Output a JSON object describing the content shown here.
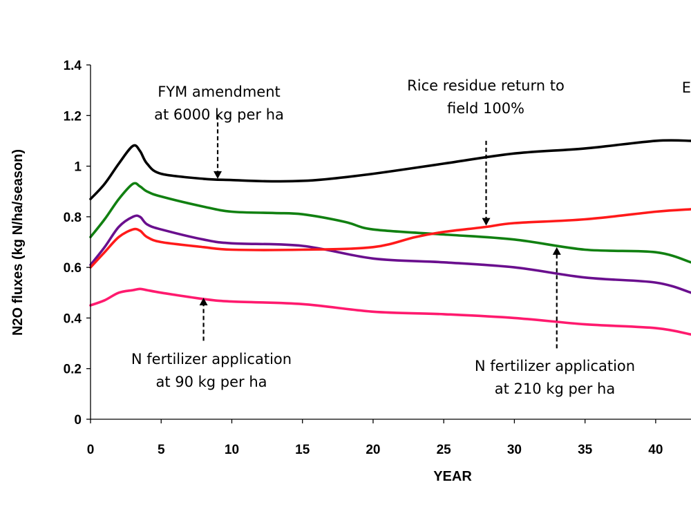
{
  "chart_data": {
    "type": "line",
    "title": "",
    "xlabel": "YEAR",
    "ylabel": "N2O fluxes (kg N/ha/season)",
    "xlim": [
      0,
      42.5
    ],
    "ylim": [
      0,
      1.4
    ],
    "xticks": [
      "0",
      "5",
      "10",
      "15",
      "20",
      "25",
      "30",
      "35",
      "40"
    ],
    "yticks": [
      "0",
      "0.2",
      "0.4",
      "0.6",
      "0.8",
      "1",
      "1.2",
      "1.4"
    ],
    "grid": false,
    "legend": "none",
    "series": [
      {
        "color": "#000000",
        "points": [
          [
            0,
            0.87
          ],
          [
            1,
            0.93
          ],
          [
            2,
            1.01
          ],
          [
            3,
            1.08
          ],
          [
            3.5,
            1.06
          ],
          [
            4,
            1.01
          ],
          [
            5,
            0.97
          ],
          [
            8,
            0.95
          ],
          [
            10,
            0.945
          ],
          [
            13,
            0.94
          ],
          [
            16,
            0.945
          ],
          [
            20,
            0.97
          ],
          [
            25,
            1.01
          ],
          [
            30,
            1.05
          ],
          [
            35,
            1.07
          ],
          [
            40,
            1.1
          ],
          [
            42.5,
            1.1
          ]
        ]
      },
      {
        "color": "#118011",
        "points": [
          [
            0,
            0.72
          ],
          [
            1,
            0.79
          ],
          [
            2,
            0.87
          ],
          [
            3,
            0.93
          ],
          [
            3.5,
            0.92
          ],
          [
            4,
            0.9
          ],
          [
            5,
            0.88
          ],
          [
            8,
            0.84
          ],
          [
            10,
            0.82
          ],
          [
            13,
            0.815
          ],
          [
            15,
            0.81
          ],
          [
            18,
            0.78
          ],
          [
            20,
            0.75
          ],
          [
            25,
            0.73
          ],
          [
            30,
            0.71
          ],
          [
            35,
            0.67
          ],
          [
            40,
            0.66
          ],
          [
            42.5,
            0.62
          ]
        ]
      },
      {
        "color": "#6a0f8e",
        "points": [
          [
            0,
            0.61
          ],
          [
            1,
            0.68
          ],
          [
            2,
            0.76
          ],
          [
            3,
            0.8
          ],
          [
            3.5,
            0.8
          ],
          [
            4,
            0.77
          ],
          [
            5,
            0.75
          ],
          [
            8,
            0.71
          ],
          [
            10,
            0.695
          ],
          [
            15,
            0.685
          ],
          [
            20,
            0.635
          ],
          [
            25,
            0.62
          ],
          [
            30,
            0.6
          ],
          [
            35,
            0.56
          ],
          [
            40,
            0.54
          ],
          [
            42.5,
            0.5
          ]
        ]
      },
      {
        "color": "#ff1a1a",
        "points": [
          [
            0,
            0.6
          ],
          [
            1,
            0.66
          ],
          [
            2,
            0.72
          ],
          [
            3,
            0.75
          ],
          [
            3.5,
            0.745
          ],
          [
            4,
            0.72
          ],
          [
            5,
            0.7
          ],
          [
            8,
            0.68
          ],
          [
            10,
            0.67
          ],
          [
            15,
            0.67
          ],
          [
            20,
            0.68
          ],
          [
            23,
            0.72
          ],
          [
            25,
            0.74
          ],
          [
            28,
            0.76
          ],
          [
            30,
            0.775
          ],
          [
            35,
            0.79
          ],
          [
            40,
            0.82
          ],
          [
            42.5,
            0.83
          ]
        ]
      },
      {
        "color": "#ff1a6e",
        "points": [
          [
            0,
            0.45
          ],
          [
            1,
            0.47
          ],
          [
            2,
            0.5
          ],
          [
            3,
            0.51
          ],
          [
            3.5,
            0.515
          ],
          [
            4,
            0.51
          ],
          [
            5,
            0.5
          ],
          [
            8,
            0.475
          ],
          [
            10,
            0.465
          ],
          [
            15,
            0.455
          ],
          [
            20,
            0.425
          ],
          [
            25,
            0.415
          ],
          [
            30,
            0.4
          ],
          [
            35,
            0.375
          ],
          [
            40,
            0.36
          ],
          [
            42.5,
            0.335
          ]
        ]
      }
    ],
    "annotations": [
      {
        "lines": [
          "FYM amendment",
          "at 6000 kg per ha"
        ],
        "arrow": {
          "from": [
            9,
            1.2
          ],
          "to": [
            9,
            0.95
          ],
          "direction": "down"
        }
      },
      {
        "lines": [
          "Rice residue return to",
          "field 100%"
        ],
        "arrow": {
          "from": [
            28,
            1.1
          ],
          "to": [
            28,
            0.765
          ],
          "direction": "down"
        }
      },
      {
        "lines": [
          "N fertilizer application",
          "at 90 kg per ha"
        ],
        "arrow": {
          "from": [
            8,
            0.31
          ],
          "to": [
            8,
            0.48
          ],
          "direction": "up"
        }
      },
      {
        "lines": [
          "N fertilizer application",
          "at 210 kg per ha"
        ],
        "arrow": {
          "from": [
            33,
            0.28
          ],
          "to": [
            33,
            0.68
          ],
          "direction": "up"
        }
      },
      {
        "lines": [
          "E"
        ],
        "arrow": null
      }
    ]
  }
}
